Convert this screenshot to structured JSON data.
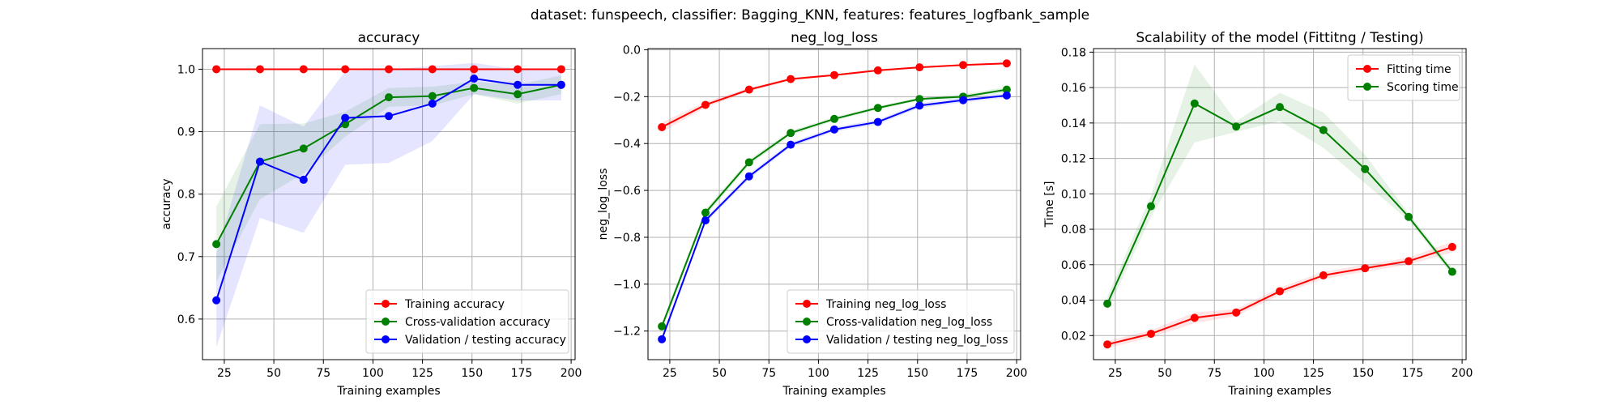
{
  "suptitle": "dataset: funspeech, classifier: Bagging_KNN, features: features_logfbank_sample",
  "chart_data": [
    {
      "type": "line",
      "title": "accuracy",
      "xlabel": "Training examples",
      "ylabel": "accuracy",
      "xlim": [
        14,
        202
      ],
      "ylim": [
        0.535,
        1.033
      ],
      "xticks": [
        25,
        50,
        75,
        100,
        125,
        150,
        175,
        200
      ],
      "yticks": [
        0.6,
        0.7,
        0.8,
        0.9,
        1.0
      ],
      "ytick_labels": [
        "0.6",
        "0.7",
        "0.8",
        "0.9",
        "1.0"
      ],
      "grid": true,
      "legend_position": "lower-right",
      "x": [
        21,
        43,
        65,
        86,
        108,
        130,
        151,
        173,
        195
      ],
      "series": [
        {
          "name": "Training accuracy",
          "color": "#ff0000",
          "values": [
            1.0,
            1.0,
            1.0,
            1.0,
            1.0,
            1.0,
            1.0,
            1.0,
            1.0
          ],
          "band": [
            0,
            0,
            0,
            0,
            0,
            0,
            0,
            0,
            0
          ]
        },
        {
          "name": "Cross-validation accuracy",
          "color": "#008000",
          "values": [
            0.72,
            0.852,
            0.873,
            0.912,
            0.955,
            0.957,
            0.97,
            0.96,
            0.975
          ],
          "band": [
            0.06,
            0.06,
            0.04,
            0.02,
            0.015,
            0.015,
            0.01,
            0.015,
            0.015
          ]
        },
        {
          "name": "Validation / testing accuracy",
          "color": "#0000ff",
          "values": [
            0.63,
            0.852,
            0.823,
            0.922,
            0.925,
            0.945,
            0.985,
            0.975,
            0.975
          ],
          "band": [
            0.075,
            0.09,
            0.085,
            0.075,
            0.075,
            0.06,
            0.025,
            0.025,
            0.025
          ]
        }
      ]
    },
    {
      "type": "line",
      "title": "neg_log_loss",
      "xlabel": "Training examples",
      "ylabel": "neg_log_loss",
      "xlim": [
        14,
        202
      ],
      "ylim": [
        -1.322,
        0.005
      ],
      "xticks": [
        25,
        50,
        75,
        100,
        125,
        150,
        175,
        200
      ],
      "yticks": [
        -1.2,
        -1.0,
        -0.8,
        -0.6,
        -0.4,
        -0.2,
        0.0
      ],
      "ytick_labels": [
        "−1.2",
        "−1.0",
        "−0.8",
        "−0.6",
        "−0.4",
        "−0.2",
        "0.0"
      ],
      "grid": true,
      "legend_position": "lower-right",
      "x": [
        21,
        43,
        65,
        86,
        108,
        130,
        151,
        173,
        195
      ],
      "series": [
        {
          "name": "Training neg_log_loss",
          "color": "#ff0000",
          "values": [
            -0.33,
            -0.235,
            -0.17,
            -0.125,
            -0.108,
            -0.088,
            -0.075,
            -0.065,
            -0.058
          ],
          "band": [
            0.02,
            0.012,
            0.008,
            0.006,
            0.005,
            0.004,
            0.004,
            0.004,
            0.004
          ]
        },
        {
          "name": "Cross-validation neg_log_loss",
          "color": "#008000",
          "values": [
            -1.18,
            -0.695,
            -0.48,
            -0.355,
            -0.295,
            -0.248,
            -0.21,
            -0.2,
            -0.17
          ],
          "band": [
            0.015,
            0.015,
            0.012,
            0.01,
            0.008,
            0.008,
            0.006,
            0.01,
            0.012
          ]
        },
        {
          "name": "Validation / testing neg_log_loss",
          "color": "#0000ff",
          "values": [
            -1.235,
            -0.728,
            -0.54,
            -0.405,
            -0.34,
            -0.308,
            -0.238,
            -0.215,
            -0.195
          ],
          "band": [
            0.012,
            0.012,
            0.012,
            0.01,
            0.01,
            0.01,
            0.01,
            0.01,
            0.01
          ]
        }
      ]
    },
    {
      "type": "line",
      "title": "Scalability of the model (Fittitng / Testing)",
      "xlabel": "Training examples",
      "ylabel": "Time [s]",
      "xlim": [
        14,
        202
      ],
      "ylim": [
        0.0064,
        0.182
      ],
      "xticks": [
        25,
        50,
        75,
        100,
        125,
        150,
        175,
        200
      ],
      "yticks": [
        0.02,
        0.04,
        0.06,
        0.08,
        0.1,
        0.12,
        0.14,
        0.16,
        0.18
      ],
      "ytick_labels": [
        "0.02",
        "0.04",
        "0.06",
        "0.08",
        "0.10",
        "0.12",
        "0.14",
        "0.16",
        "0.18"
      ],
      "grid": true,
      "legend_position": "upper-right",
      "x": [
        21,
        43,
        65,
        86,
        108,
        130,
        151,
        173,
        195
      ],
      "series": [
        {
          "name": "Fitting time",
          "color": "#ff0000",
          "values": [
            0.015,
            0.021,
            0.03,
            0.033,
            0.045,
            0.054,
            0.058,
            0.062,
            0.07
          ],
          "band": [
            0.002,
            0.002,
            0.003,
            0.002,
            0.002,
            0.002,
            0.002,
            0.002,
            0.003
          ]
        },
        {
          "name": "Scoring time",
          "color": "#008000",
          "values": [
            0.038,
            0.093,
            0.151,
            0.138,
            0.149,
            0.136,
            0.114,
            0.087,
            0.056
          ],
          "band": [
            0.004,
            0.006,
            0.022,
            0.003,
            0.008,
            0.01,
            0.008,
            0.002,
            0.002
          ]
        }
      ]
    }
  ]
}
